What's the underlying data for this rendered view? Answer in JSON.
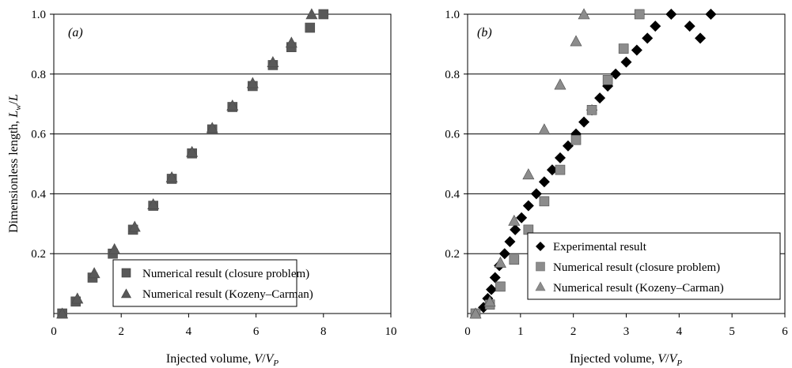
{
  "chart_data": [
    {
      "type": "scatter",
      "panel_label": "(a)",
      "xlabel": "Injected volume, V/V_P",
      "ylabel": "Dimensionless length, L_w/L",
      "xlim": [
        0,
        10
      ],
      "ylim": [
        0,
        1.0
      ],
      "x_ticks": [
        "0",
        "2",
        "4",
        "6",
        "8",
        "10"
      ],
      "y_ticks": [
        "0.2",
        "0.4",
        "0.6",
        "0.8",
        "1.0"
      ],
      "grid": "horizontal",
      "legend_position": "bottom-left",
      "series": [
        {
          "name": "Numerical result (closure problem)",
          "marker": "square",
          "color": "#595959",
          "x": [
            0.25,
            0.65,
            1.15,
            1.75,
            2.35,
            2.95,
            3.5,
            4.1,
            4.7,
            5.3,
            5.9,
            6.5,
            7.05,
            7.6,
            8.0
          ],
          "y": [
            0.0,
            0.04,
            0.12,
            0.2,
            0.28,
            0.36,
            0.45,
            0.535,
            0.615,
            0.69,
            0.76,
            0.83,
            0.89,
            0.955,
            1.0
          ]
        },
        {
          "name": "Numerical result (Kozeny–Carman)",
          "marker": "triangle",
          "color": "#595959",
          "x": [
            0.25,
            0.7,
            1.2,
            1.8,
            2.4,
            2.95,
            3.5,
            4.1,
            4.7,
            5.3,
            5.9,
            6.5,
            7.05,
            7.65
          ],
          "y": [
            0.0,
            0.05,
            0.135,
            0.215,
            0.29,
            0.365,
            0.455,
            0.54,
            0.62,
            0.695,
            0.77,
            0.84,
            0.905,
            1.0
          ]
        }
      ]
    },
    {
      "type": "scatter",
      "panel_label": "(b)",
      "xlabel": "Injected volume, V/V_P",
      "ylabel": "",
      "xlim": [
        0,
        6
      ],
      "ylim": [
        0,
        1.0
      ],
      "x_ticks": [
        "0",
        "1",
        "2",
        "3",
        "4",
        "5",
        "6"
      ],
      "y_ticks": [
        "0.2",
        "0.4",
        "0.6",
        "0.8",
        "1.0"
      ],
      "grid": "horizontal",
      "legend_position": "bottom-right",
      "series": [
        {
          "name": "Experimental result",
          "marker": "diamond",
          "color": "#000000",
          "x": [
            0.3,
            0.38,
            0.45,
            0.52,
            0.6,
            0.7,
            0.8,
            0.9,
            1.02,
            1.15,
            1.3,
            1.45,
            1.6,
            1.75,
            1.9,
            2.05,
            2.2,
            2.35,
            2.5,
            2.65,
            2.8,
            3.0,
            3.2,
            3.4,
            3.55,
            3.85,
            4.2,
            4.4,
            4.6
          ],
          "y": [
            0.02,
            0.05,
            0.08,
            0.12,
            0.16,
            0.2,
            0.24,
            0.28,
            0.32,
            0.36,
            0.4,
            0.44,
            0.48,
            0.52,
            0.56,
            0.6,
            0.64,
            0.68,
            0.72,
            0.76,
            0.8,
            0.84,
            0.88,
            0.92,
            0.96,
            1.0,
            0.96,
            0.92,
            1.0
          ]
        },
        {
          "name": "Numerical result (closure problem)",
          "marker": "square",
          "color": "#8c8c8c",
          "x": [
            0.15,
            0.42,
            0.62,
            0.88,
            1.15,
            1.45,
            1.75,
            2.05,
            2.35,
            2.65,
            2.95,
            3.25
          ],
          "y": [
            0.0,
            0.03,
            0.09,
            0.18,
            0.28,
            0.375,
            0.48,
            0.58,
            0.68,
            0.78,
            0.885,
            1.0
          ]
        },
        {
          "name": "Numerical result (Kozeny–Carman)",
          "marker": "triangle",
          "color": "#8c8c8c",
          "x": [
            0.15,
            0.42,
            0.62,
            0.88,
            1.15,
            1.45,
            1.75,
            2.05,
            2.2
          ],
          "y": [
            0.0,
            0.04,
            0.17,
            0.31,
            0.465,
            0.615,
            0.765,
            0.91,
            1.0
          ]
        }
      ]
    }
  ]
}
